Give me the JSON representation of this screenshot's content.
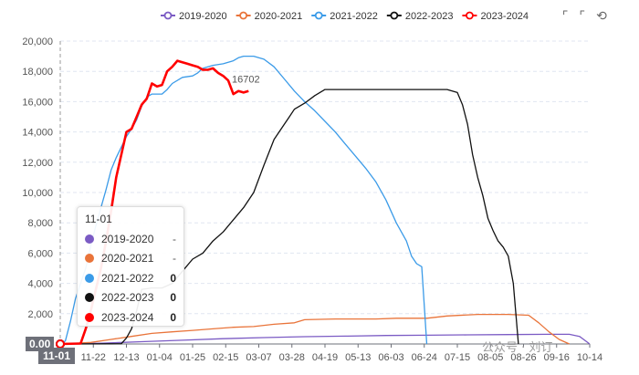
{
  "chart_data": {
    "type": "line",
    "xlabel": "",
    "ylabel": "",
    "ylim": [
      0,
      20000
    ],
    "y_ticks": [
      0,
      2000,
      4000,
      6000,
      8000,
      10000,
      12000,
      14000,
      16000,
      18000,
      20000
    ],
    "y_tick_labels": [
      "0",
      "2,000",
      "4,000",
      "6,000",
      "8,000",
      "10,000",
      "12,000",
      "14,000",
      "16,000",
      "18,000",
      "20,000"
    ],
    "x_tick_labels": [
      "11-01",
      "11-22",
      "12-13",
      "01-04",
      "01-25",
      "02-15",
      "03-07",
      "03-28",
      "04-19",
      "05-13",
      "06-03",
      "06-24",
      "07-15",
      "08-05",
      "08-26",
      "09-16",
      "10-14"
    ],
    "grid": "horizontal-dashed",
    "legend_position": "top",
    "end_label": "16702",
    "series": [
      {
        "name": "2019-2020",
        "color": "#7b5bc4",
        "points": [
          [
            0,
            0
          ],
          [
            4,
            50
          ],
          [
            8,
            150
          ],
          [
            12,
            250
          ],
          [
            16,
            350
          ],
          [
            20,
            420
          ],
          [
            24,
            480
          ],
          [
            28,
            520
          ],
          [
            32,
            560
          ],
          [
            36,
            580
          ],
          [
            40,
            600
          ],
          [
            44,
            620
          ],
          [
            48,
            640
          ],
          [
            50,
            640
          ],
          [
            51,
            500
          ],
          [
            52,
            0
          ]
        ]
      },
      {
        "name": "2020-2021",
        "color": "#e9743a",
        "points": [
          [
            0,
            0
          ],
          [
            3,
            100
          ],
          [
            5,
            300
          ],
          [
            7,
            500
          ],
          [
            9,
            700
          ],
          [
            11,
            800
          ],
          [
            13,
            900
          ],
          [
            15,
            1000
          ],
          [
            17,
            1100
          ],
          [
            19,
            1150
          ],
          [
            21,
            1300
          ],
          [
            23,
            1400
          ],
          [
            24,
            1600
          ],
          [
            27,
            1650
          ],
          [
            31,
            1650
          ],
          [
            33,
            1700
          ],
          [
            36,
            1700
          ],
          [
            38,
            1850
          ],
          [
            41,
            1950
          ],
          [
            44,
            1950
          ],
          [
            46,
            1900
          ],
          [
            47,
            1400
          ],
          [
            48,
            800
          ],
          [
            49,
            300
          ],
          [
            50,
            0
          ]
        ]
      },
      {
        "name": "2021-2022",
        "color": "#3b9be8",
        "points": [
          [
            0,
            0
          ],
          [
            0.5,
            200
          ],
          [
            1,
            1500
          ],
          [
            1.5,
            3000
          ],
          [
            2,
            4000
          ],
          [
            2.5,
            5000
          ],
          [
            3,
            6500
          ],
          [
            3.5,
            7800
          ],
          [
            4,
            9000
          ],
          [
            4.5,
            10200
          ],
          [
            5,
            11500
          ],
          [
            5.5,
            12300
          ],
          [
            6,
            13000
          ],
          [
            6.5,
            13700
          ],
          [
            7,
            14200
          ],
          [
            7.5,
            14800
          ],
          [
            8,
            15700
          ],
          [
            8.5,
            16300
          ],
          [
            9,
            16500
          ],
          [
            10,
            16500
          ],
          [
            10.5,
            16800
          ],
          [
            11,
            17200
          ],
          [
            12,
            17600
          ],
          [
            13,
            17700
          ],
          [
            13.5,
            17900
          ],
          [
            14,
            18200
          ],
          [
            15,
            18400
          ],
          [
            16,
            18500
          ],
          [
            17,
            18700
          ],
          [
            17.5,
            18900
          ],
          [
            18,
            19000
          ],
          [
            19,
            19000
          ],
          [
            20,
            18800
          ],
          [
            21,
            18300
          ],
          [
            22,
            17500
          ],
          [
            23,
            16700
          ],
          [
            24,
            16000
          ],
          [
            25,
            15400
          ],
          [
            26,
            14700
          ],
          [
            27,
            14000
          ],
          [
            28,
            13200
          ],
          [
            29,
            12400
          ],
          [
            30,
            11600
          ],
          [
            31,
            10700
          ],
          [
            32,
            9500
          ],
          [
            33,
            8000
          ],
          [
            34,
            6800
          ],
          [
            34.5,
            5800
          ],
          [
            35,
            5300
          ],
          [
            35.5,
            5100
          ],
          [
            36,
            0
          ]
        ]
      },
      {
        "name": "2022-2023",
        "color": "#111111",
        "points": [
          [
            0,
            0
          ],
          [
            5,
            10
          ],
          [
            6,
            20
          ],
          [
            6.5,
            400
          ],
          [
            7,
            1000
          ],
          [
            7.5,
            2200
          ],
          [
            8,
            3600
          ],
          [
            9,
            3700
          ],
          [
            10,
            3700
          ],
          [
            11,
            4000
          ],
          [
            12,
            4800
          ],
          [
            13,
            5600
          ],
          [
            14,
            6000
          ],
          [
            15,
            6800
          ],
          [
            16,
            7400
          ],
          [
            17,
            8200
          ],
          [
            18,
            9000
          ],
          [
            19,
            10000
          ],
          [
            20,
            11800
          ],
          [
            21,
            13500
          ],
          [
            22,
            14500
          ],
          [
            22.5,
            15000
          ],
          [
            23,
            15500
          ],
          [
            24,
            15900
          ],
          [
            25,
            16400
          ],
          [
            25.5,
            16600
          ],
          [
            26,
            16800
          ],
          [
            31,
            16800
          ],
          [
            35,
            16800
          ],
          [
            38,
            16800
          ],
          [
            39,
            16600
          ],
          [
            39.5,
            15800
          ],
          [
            40,
            14500
          ],
          [
            40.5,
            12500
          ],
          [
            41,
            11000
          ],
          [
            41.5,
            9800
          ],
          [
            42,
            8300
          ],
          [
            42.5,
            7500
          ],
          [
            43,
            6800
          ],
          [
            43.5,
            6400
          ],
          [
            44,
            5800
          ],
          [
            44.5,
            4000
          ],
          [
            45,
            0
          ]
        ]
      },
      {
        "name": "2023-2024",
        "color": "#ff0000",
        "points": [
          [
            0,
            0
          ],
          [
            2,
            30
          ],
          [
            2.5,
            1000
          ],
          [
            3,
            2200
          ],
          [
            3.5,
            3600
          ],
          [
            4,
            5000
          ],
          [
            4.5,
            6800
          ],
          [
            5,
            8800
          ],
          [
            5.5,
            11000
          ],
          [
            6,
            12500
          ],
          [
            6.5,
            14000
          ],
          [
            7,
            14200
          ],
          [
            7.5,
            15000
          ],
          [
            8,
            15800
          ],
          [
            8.5,
            16200
          ],
          [
            9,
            17200
          ],
          [
            9.5,
            17000
          ],
          [
            10,
            17100
          ],
          [
            10.5,
            18000
          ],
          [
            11,
            18300
          ],
          [
            11.5,
            18700
          ],
          [
            12,
            18600
          ],
          [
            12.5,
            18500
          ],
          [
            13,
            18400
          ],
          [
            13.5,
            18300
          ],
          [
            14,
            18100
          ],
          [
            14.5,
            18100
          ],
          [
            15,
            18200
          ],
          [
            15.5,
            17900
          ],
          [
            16,
            17700
          ],
          [
            16.5,
            17400
          ],
          [
            17,
            16500
          ],
          [
            17.5,
            16700
          ],
          [
            18,
            16600
          ],
          [
            18.5,
            16702
          ]
        ]
      }
    ]
  },
  "legend": {
    "items": [
      {
        "label": "2019-2020",
        "color": "#7b5bc4"
      },
      {
        "label": "2020-2021",
        "color": "#e9743a"
      },
      {
        "label": "2021-2022",
        "color": "#3b9be8"
      },
      {
        "label": "2022-2023",
        "color": "#111111"
      },
      {
        "label": "2023-2024",
        "color": "#ff0000"
      }
    ]
  },
  "tooltip": {
    "title": "11-01",
    "rows": [
      {
        "name": "2019-2020",
        "color": "#7b5bc4",
        "value": "-"
      },
      {
        "name": "2020-2021",
        "color": "#e9743a",
        "value": "-"
      },
      {
        "name": "2021-2022",
        "color": "#3b9be8",
        "value": "0"
      },
      {
        "name": "2022-2023",
        "color": "#111111",
        "value": "0"
      },
      {
        "name": "2023-2024",
        "color": "#ff0000",
        "value": "0"
      }
    ]
  },
  "hover": {
    "x_label": "11-01",
    "y_label": "0.00"
  },
  "toolbox": {
    "zoom_icon": "⌜",
    "reset_icon": "⌜",
    "restore_icon": "⟲"
  },
  "watermark": "公众号 · 刘订"
}
